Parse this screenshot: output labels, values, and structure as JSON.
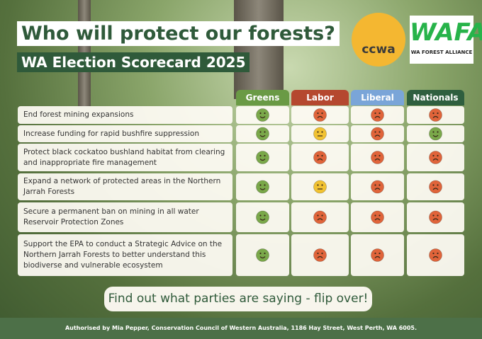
{
  "header": {
    "title": "Who will protect our forests?",
    "subtitle": "WA Election Scorecard 2025"
  },
  "logos": {
    "ccwa": "ccwa",
    "wafa": "WAFA",
    "wafa_caption": "WA FOREST ALLIANCE"
  },
  "table": {
    "columns": [
      {
        "name": "Greens",
        "color": "#6a9a45"
      },
      {
        "name": "Labor",
        "color": "#b5482f"
      },
      {
        "name": "Liberal",
        "color": "#7aa5d8"
      },
      {
        "name": "Nationals",
        "color": "#2f5f3f"
      }
    ],
    "rows": [
      {
        "label": "End forest mining expansions",
        "cells": [
          {
            "color": "#7aa84a",
            "mouth": 1
          },
          {
            "color": "#e0643a",
            "mouth": -1
          },
          {
            "color": "#e0643a",
            "mouth": -1
          },
          {
            "color": "#e0643a",
            "mouth": -1
          }
        ]
      },
      {
        "label": "Increase funding for rapid bushfire suppression",
        "cells": [
          {
            "color": "#7aa84a",
            "mouth": 1
          },
          {
            "color": "#f1c232",
            "mouth": 0
          },
          {
            "color": "#e0643a",
            "mouth": -1
          },
          {
            "color": "#7aa84a",
            "mouth": 1
          }
        ]
      },
      {
        "label": "Protect black cockatoo bushland habitat from clearing and inappropriate fire management",
        "cells": [
          {
            "color": "#7aa84a",
            "mouth": 1
          },
          {
            "color": "#e0643a",
            "mouth": -1
          },
          {
            "color": "#e0643a",
            "mouth": -1
          },
          {
            "color": "#e0643a",
            "mouth": -1
          }
        ]
      },
      {
        "label": "Expand a network of protected areas in the Northern Jarrah Forests",
        "cells": [
          {
            "color": "#7aa84a",
            "mouth": 1
          },
          {
            "color": "#f1c232",
            "mouth": 0
          },
          {
            "color": "#e0643a",
            "mouth": -1
          },
          {
            "color": "#e0643a",
            "mouth": -1
          }
        ]
      },
      {
        "label": "Secure a permanent ban on mining in all water Reservoir Protection Zones",
        "cells": [
          {
            "color": "#7aa84a",
            "mouth": 1
          },
          {
            "color": "#e0643a",
            "mouth": -1
          },
          {
            "color": "#e0643a",
            "mouth": -1
          },
          {
            "color": "#e0643a",
            "mouth": -1
          }
        ]
      },
      {
        "label": "Support the EPA to conduct a Strategic Advice on the Northern Jarrah Forests to better understand this biodiverse and vulnerable ecosystem",
        "cells": [
          {
            "color": "#7aa84a",
            "mouth": 1
          },
          {
            "color": "#e0643a",
            "mouth": -1
          },
          {
            "color": "#e0643a",
            "mouth": -1
          },
          {
            "color": "#e0643a",
            "mouth": -1
          }
        ]
      }
    ]
  },
  "cta": "Find out what parties are saying - flip over!",
  "footer": "Authorised by Mia Pepper, Conservation Council of Western Australia, 1186 Hay Street, West Perth, WA 6005."
}
